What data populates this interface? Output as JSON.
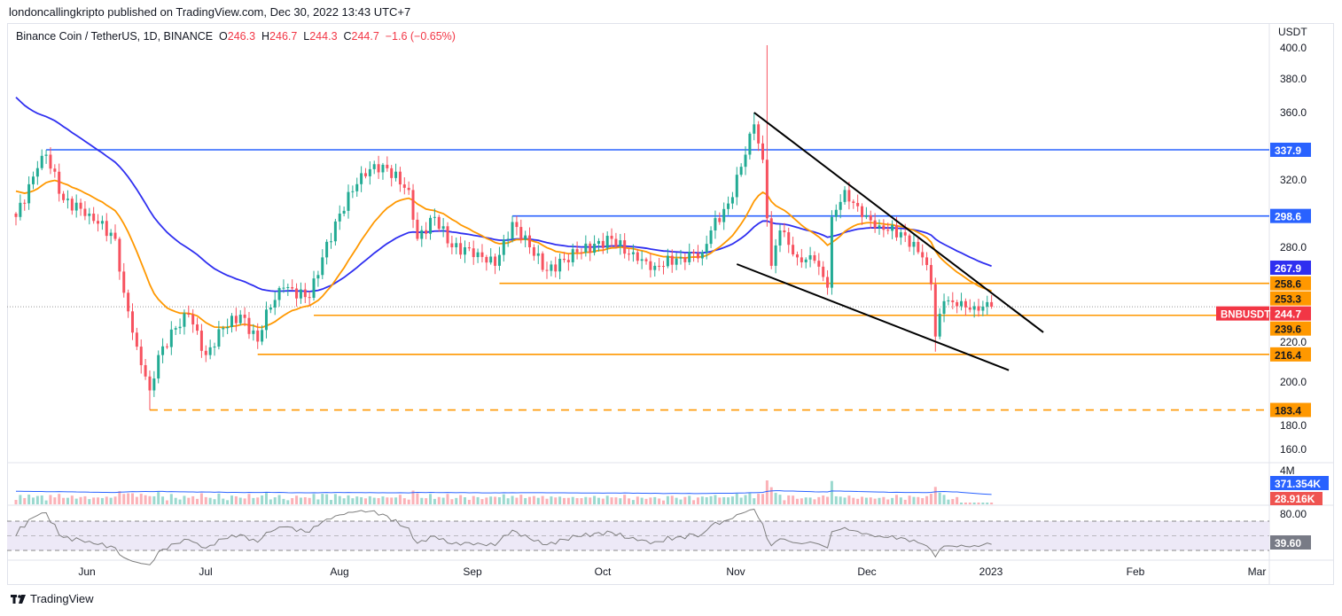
{
  "header": {
    "published": "londoncallingkripto published on TradingView.com, Dec 30, 2022 13:43 UTC+7",
    "symbol": "Binance Coin / TetherUS, 1D, BINANCE",
    "o_label": "O",
    "o": "246.3",
    "h_label": "H",
    "h": "246.7",
    "l_label": "L",
    "l": "244.3",
    "c_label": "C",
    "c": "244.7",
    "change": "−1.6 (−0.65%)"
  },
  "footer": {
    "brand": "TradingView",
    "logo_icon": "tradingview-logo-icon"
  },
  "colors": {
    "up": "#22ab94",
    "down": "#f7525f",
    "ma_fast": "#ff9800",
    "ma_slow": "#2f2ff0",
    "level_blue": "#2962ff",
    "level_orange": "#ff9800",
    "rsi": "#7e7e7e",
    "rsi_band": "#ede9f7"
  },
  "chart_data": {
    "type": "candlestick",
    "title": "Binance Coin / TetherUS, 1D, BINANCE",
    "currency_label": "USDT",
    "ylim": [
      150,
      405
    ],
    "y_ticks": [
      "400.0",
      "380.0",
      "360.0",
      "320.0",
      "280.0",
      "220.0",
      "200.0",
      "180.0",
      "160.0"
    ],
    "y_tick_values": [
      400,
      380,
      360,
      320,
      280,
      220,
      200,
      180,
      160
    ],
    "x_ticks": [
      "Jun",
      "Jul",
      "Aug",
      "Sep",
      "Oct",
      "Nov",
      "Dec",
      "2023",
      "Feb",
      "Mar"
    ],
    "x_tick_days": [
      17,
      47,
      78,
      109,
      139,
      170,
      200,
      231,
      262,
      290
    ],
    "start_date": "2022-05-15",
    "close_anchors": [
      [
        0,
        298
      ],
      [
        5,
        327
      ],
      [
        7,
        335
      ],
      [
        11,
        308
      ],
      [
        17,
        300
      ],
      [
        23,
        285
      ],
      [
        25,
        253
      ],
      [
        28,
        221
      ],
      [
        31,
        195
      ],
      [
        33,
        216
      ],
      [
        37,
        232
      ],
      [
        40,
        240
      ],
      [
        44,
        216
      ],
      [
        48,
        232
      ],
      [
        52,
        240
      ],
      [
        56,
        224
      ],
      [
        58,
        243
      ],
      [
        62,
        256
      ],
      [
        68,
        250
      ],
      [
        71,
        274
      ],
      [
        75,
        300
      ],
      [
        80,
        324
      ],
      [
        85,
        329
      ],
      [
        91,
        314
      ],
      [
        93,
        285
      ],
      [
        97,
        298
      ],
      [
        101,
        280
      ],
      [
        107,
        277
      ],
      [
        111,
        269
      ],
      [
        115,
        295
      ],
      [
        119,
        280
      ],
      [
        123,
        266
      ],
      [
        130,
        277
      ],
      [
        138,
        285
      ],
      [
        144,
        272
      ],
      [
        148,
        269
      ],
      [
        154,
        274
      ],
      [
        159,
        277
      ],
      [
        161,
        290
      ],
      [
        165,
        306
      ],
      [
        169,
        335
      ],
      [
        171,
        353
      ],
      [
        173,
        332
      ],
      [
        175,
        269
      ],
      [
        177,
        290
      ],
      [
        181,
        274
      ],
      [
        185,
        272
      ],
      [
        188,
        256
      ],
      [
        189,
        298
      ],
      [
        192,
        314
      ],
      [
        196,
        298
      ],
      [
        200,
        293
      ],
      [
        206,
        287
      ],
      [
        210,
        274
      ],
      [
        212,
        258
      ],
      [
        213,
        227
      ],
      [
        215,
        248
      ],
      [
        218,
        245
      ],
      [
        222,
        245
      ],
      [
        226,
        244.7
      ]
    ],
    "wick_overrides": [
      {
        "day": 7,
        "high": 337.9
      },
      {
        "day": 31,
        "low": 183.4
      },
      {
        "day": 174,
        "high": 400
      },
      {
        "day": 171,
        "high": 360
      },
      {
        "day": 213,
        "low": 218
      }
    ],
    "ma_fast_seed": 315,
    "ma_slow_seed": 372,
    "levels": [
      {
        "price": 337.9,
        "label": "337.9",
        "color": "blue",
        "from_day": 7,
        "dashed": false
      },
      {
        "price": 298.6,
        "label": "298.6",
        "color": "blue",
        "from_day": 115,
        "dashed": false
      },
      {
        "price": 258.6,
        "label": "258.6",
        "color": "orange",
        "from_day": 112,
        "dashed": false
      },
      {
        "price": 239.6,
        "label": "239.6",
        "color": "orange",
        "from_day": 69,
        "dashed": false
      },
      {
        "price": 216.4,
        "label": "216.4",
        "color": "orange",
        "from_day": 56,
        "dashed": false
      },
      {
        "price": 183.4,
        "label": "183.4",
        "color": "orange",
        "from_day": 31,
        "dashed": true
      }
    ],
    "trendlines": [
      {
        "from": [
          171,
          360
        ],
        "to": [
          238,
          229.5
        ]
      },
      {
        "from": [
          167,
          270
        ],
        "to": [
          230,
          207
        ]
      }
    ],
    "ma_badges": [
      {
        "label": "267.9",
        "price": 267.9,
        "color": "ma_slow"
      },
      {
        "label": "253.3",
        "price": 253.3,
        "color": "ma_fast"
      }
    ],
    "last_price": {
      "symbol": "BNBUSDT",
      "label": "244.7",
      "price": 244.7
    },
    "volume": {
      "axis_label": "4M",
      "ma_value": "371.354K",
      "last_value": "28.916K"
    },
    "rsi": {
      "axis_label": "80.00",
      "value": "39.60",
      "upper": 70,
      "lower": 30
    }
  }
}
